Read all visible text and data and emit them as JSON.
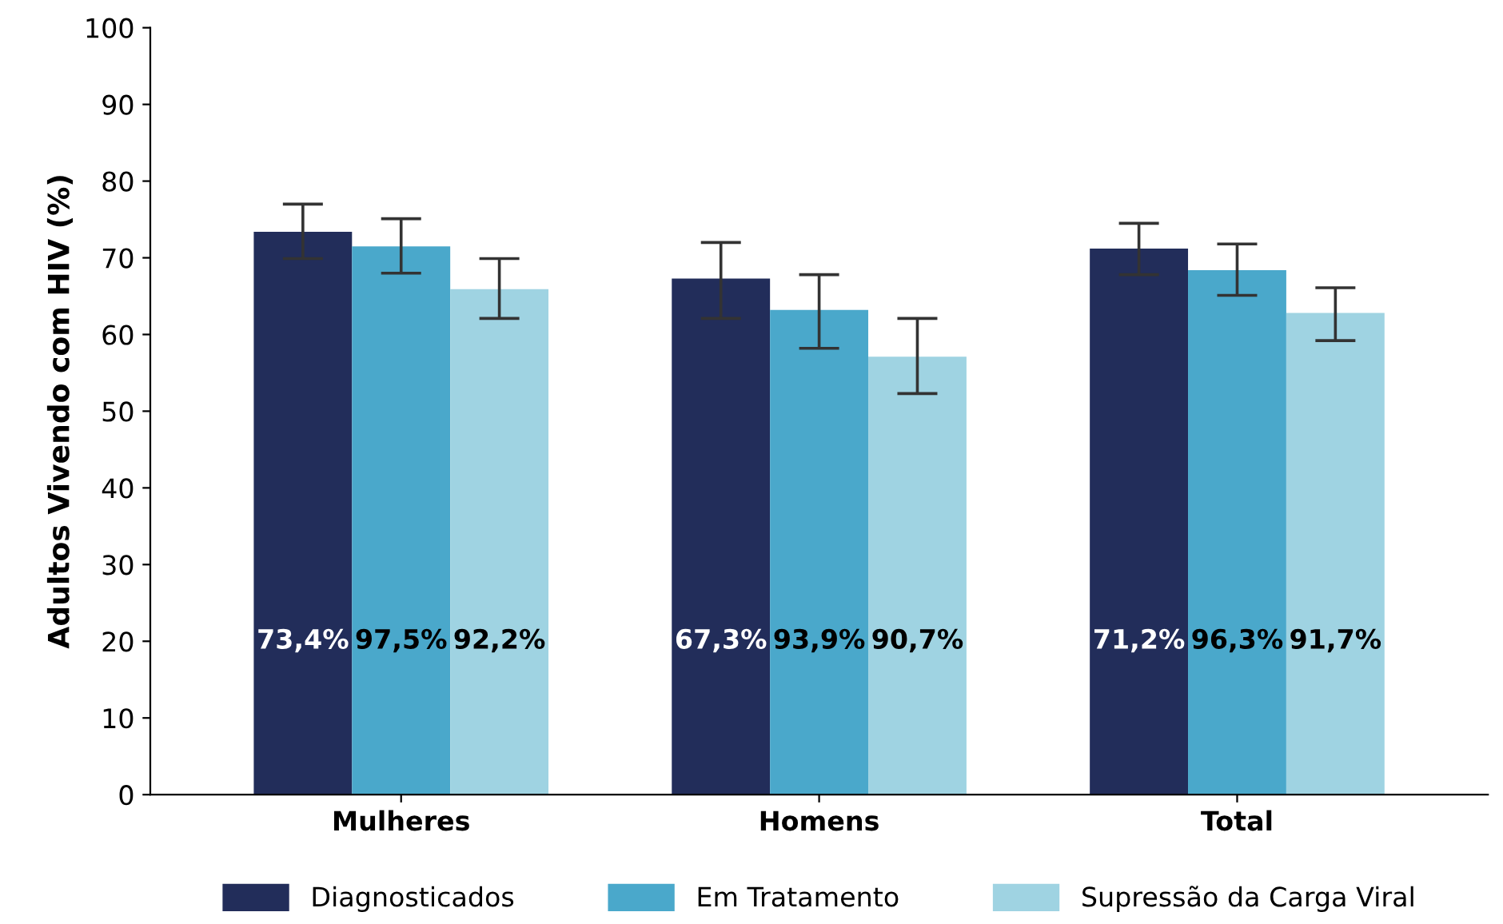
{
  "chart_data": {
    "type": "bar",
    "ylabel": "Adultos Vivendo com HIV (%)",
    "categories": [
      "Mulheres",
      "Homens",
      "Total"
    ],
    "series": [
      {
        "name": "Diagnosticados",
        "color": "#222d5a",
        "values": [
          73.4,
          67.3,
          71.2
        ],
        "errors": [
          [
            69.9,
            77.0
          ],
          [
            62.1,
            72.0
          ],
          [
            67.8,
            74.5
          ]
        ],
        "value_labels": [
          "73,4%",
          "67,3%",
          "71,2%"
        ]
      },
      {
        "name": "Em Tratamento",
        "color": "#4aa8cb",
        "values": [
          71.5,
          63.2,
          68.4
        ],
        "errors": [
          [
            68.0,
            75.1
          ],
          [
            58.2,
            67.8
          ],
          [
            65.1,
            71.8
          ]
        ]
      },
      {
        "name": "Supressão da Carga Viral",
        "color": "#9fd3e2",
        "values": [
          65.9,
          57.1,
          62.8
        ],
        "errors": [
          [
            62.1,
            69.9
          ],
          [
            52.3,
            62.1
          ],
          [
            59.2,
            66.1
          ]
        ]
      }
    ],
    "annotations": [
      "97,5%",
      "93,9%",
      "96,3%",
      "92,2%",
      "90,7%",
      "91,7%"
    ],
    "ylim": [
      0,
      100
    ],
    "yticks": [
      0,
      10,
      20,
      30,
      40,
      50,
      60,
      70,
      80,
      90,
      100
    ],
    "grid": false,
    "legend": "bottom"
  }
}
